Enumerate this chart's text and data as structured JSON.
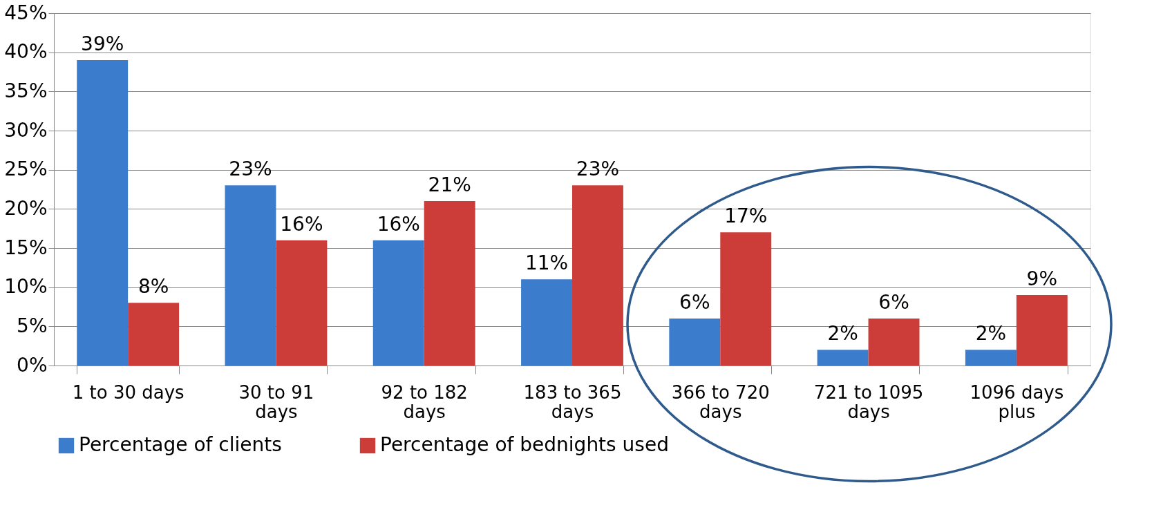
{
  "chart_data": {
    "type": "bar",
    "categories": [
      "1 to 30 days",
      "30 to 91 days",
      "92 to 182 days",
      "183 to 365 days",
      "366 to 720 days",
      "721 to 1095 days",
      "1096 days plus"
    ],
    "series": [
      {
        "name": "Percentage of clients",
        "color": "#3b7dcc",
        "values": [
          39,
          23,
          16,
          11,
          6,
          2,
          2
        ],
        "value_labels": [
          "39%",
          "23%",
          "16%",
          "11%",
          "6%",
          "2%",
          "2%"
        ]
      },
      {
        "name": "Percentage of bednights used",
        "color": "#cc3d3a",
        "values": [
          8,
          16,
          21,
          23,
          17,
          6,
          9
        ],
        "value_labels": [
          "8%",
          "16%",
          "21%",
          "23%",
          "17%",
          "6%",
          "9%"
        ]
      }
    ],
    "ylim": [
      0,
      45
    ],
    "yticks": [
      {
        "value": 0,
        "label": "0%"
      },
      {
        "value": 5,
        "label": "5%"
      },
      {
        "value": 10,
        "label": "10%"
      },
      {
        "value": 15,
        "label": "15%"
      },
      {
        "value": 20,
        "label": "20%"
      },
      {
        "value": 25,
        "label": "25%"
      },
      {
        "value": 30,
        "label": "30%"
      },
      {
        "value": 35,
        "label": "35%"
      },
      {
        "value": 40,
        "label": "40%"
      },
      {
        "value": 45,
        "label": "45%"
      }
    ],
    "grid": "y",
    "legend": "bottom"
  }
}
